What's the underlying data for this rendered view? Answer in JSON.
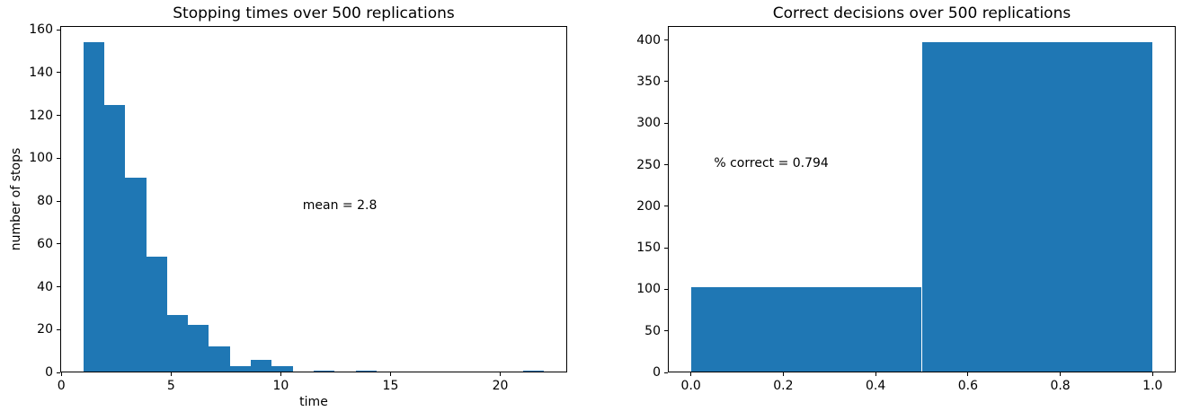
{
  "figure": {
    "background_color": "#ffffff",
    "bar_color": "#1f77b4",
    "axis_color": "#000000",
    "text_color": "#000000"
  },
  "chart_data": [
    {
      "type": "bar",
      "subtype": "histogram",
      "title": "Stopping times over 500 replications",
      "xlabel": "time",
      "ylabel": "number of stops",
      "bin_start": 1.0,
      "bin_width": 0.9545454545,
      "counts": [
        154,
        125,
        91,
        54,
        27,
        22,
        12,
        3,
        6,
        3,
        0,
        1,
        0,
        1,
        0,
        0,
        0,
        0,
        0,
        0,
        0,
        1
      ],
      "total_count": 500,
      "xlim": [
        -0.05,
        23.05
      ],
      "ylim": [
        0,
        161.7
      ],
      "xticks": [
        0,
        5,
        10,
        15,
        20
      ],
      "xtick_labels": [
        "0",
        "5",
        "10",
        "15",
        "20"
      ],
      "yticks": [
        0,
        20,
        40,
        60,
        80,
        100,
        120,
        140,
        160
      ],
      "ytick_labels": [
        "0",
        "20",
        "40",
        "60",
        "80",
        "100",
        "120",
        "140",
        "160"
      ],
      "grid": false,
      "legend": null,
      "annotation": {
        "text": "mean = 2.8",
        "x": 11.0,
        "y": 78
      }
    },
    {
      "type": "bar",
      "subtype": "histogram",
      "title": "Correct decisions over 500 replications",
      "xlabel": "",
      "ylabel": "",
      "bin_start": 0.0,
      "bin_width": 0.5,
      "counts": [
        103,
        397
      ],
      "total_count": 500,
      "xlim": [
        -0.05,
        1.05
      ],
      "ylim": [
        0,
        416.85
      ],
      "xticks": [
        0.0,
        0.2,
        0.4,
        0.6,
        0.8,
        1.0
      ],
      "xtick_labels": [
        "0.0",
        "0.2",
        "0.4",
        "0.6",
        "0.8",
        "1.0"
      ],
      "yticks": [
        0,
        50,
        100,
        150,
        200,
        250,
        300,
        350,
        400
      ],
      "ytick_labels": [
        "0",
        "50",
        "100",
        "150",
        "200",
        "250",
        "300",
        "350",
        "400"
      ],
      "grid": false,
      "legend": null,
      "annotation": {
        "text": "% correct = 0.794",
        "x": 0.05,
        "y": 252
      }
    }
  ]
}
